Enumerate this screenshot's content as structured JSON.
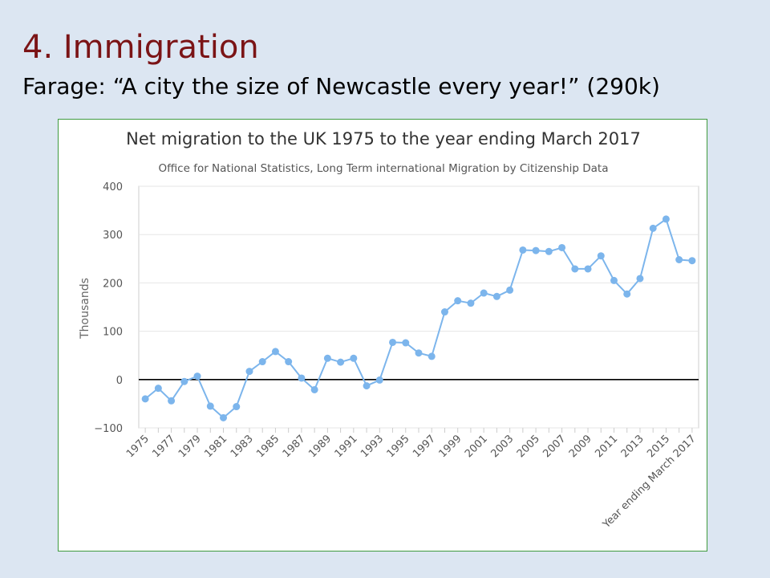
{
  "slide": {
    "title": "4. Immigration",
    "subtitle": "Farage: “A city the size of Newcastle every year!” (290k)"
  },
  "colors": {
    "title": "#7b1416",
    "background": "#dce6f2",
    "panel_border": "#3f9a3f",
    "series": "#7cb5ec",
    "zero_line": "#000000",
    "grid": "#e6e6e6"
  },
  "chart_data": {
    "type": "line",
    "title": "Net migration to the UK 1975 to the year ending March 2017",
    "subtitle": "Office for National Statistics, Long Term international Migration by Citizenship Data",
    "xlabel": "",
    "ylabel": "Thousands",
    "ylim": [
      -100,
      400
    ],
    "yticks": [
      "−100",
      "0",
      "100",
      "200",
      "300",
      "400"
    ],
    "ytick_values": [
      -100,
      0,
      100,
      200,
      300,
      400
    ],
    "grid": true,
    "categories": [
      "1975",
      "1976",
      "1977",
      "1978",
      "1979",
      "1980",
      "1981",
      "1982",
      "1983",
      "1984",
      "1985",
      "1986",
      "1987",
      "1988",
      "1989",
      "1990",
      "1991",
      "1992",
      "1993",
      "1994",
      "1995",
      "1996",
      "1997",
      "1998",
      "1999",
      "2000",
      "2001",
      "2002",
      "2003",
      "2004",
      "2005",
      "2006",
      "2007",
      "2008",
      "2009",
      "2010",
      "2011",
      "2012",
      "2013",
      "2014",
      "2015",
      "2016",
      "Year ending March 2017"
    ],
    "x_tick_labels": [
      "1975",
      "",
      "1977",
      "",
      "1979",
      "",
      "1981",
      "",
      "1983",
      "",
      "1985",
      "",
      "1987",
      "",
      "1989",
      "",
      "1991",
      "",
      "1993",
      "",
      "1995",
      "",
      "1997",
      "",
      "1999",
      "",
      "2001",
      "",
      "2003",
      "",
      "2005",
      "",
      "2007",
      "",
      "2009",
      "",
      "2011",
      "",
      "2013",
      "",
      "2015",
      "",
      "Year ending March 2017"
    ],
    "series": [
      {
        "values": [
          -40,
          -18,
          -44,
          -4,
          7,
          -55,
          -79,
          -56,
          17,
          37,
          58,
          37,
          3,
          -21,
          44,
          36,
          44,
          -13,
          -1,
          77,
          76,
          55,
          48,
          140,
          163,
          158,
          179,
          172,
          185,
          268,
          267,
          265,
          273,
          229,
          229,
          256,
          205,
          177,
          209,
          313,
          332,
          248,
          246
        ]
      }
    ]
  }
}
